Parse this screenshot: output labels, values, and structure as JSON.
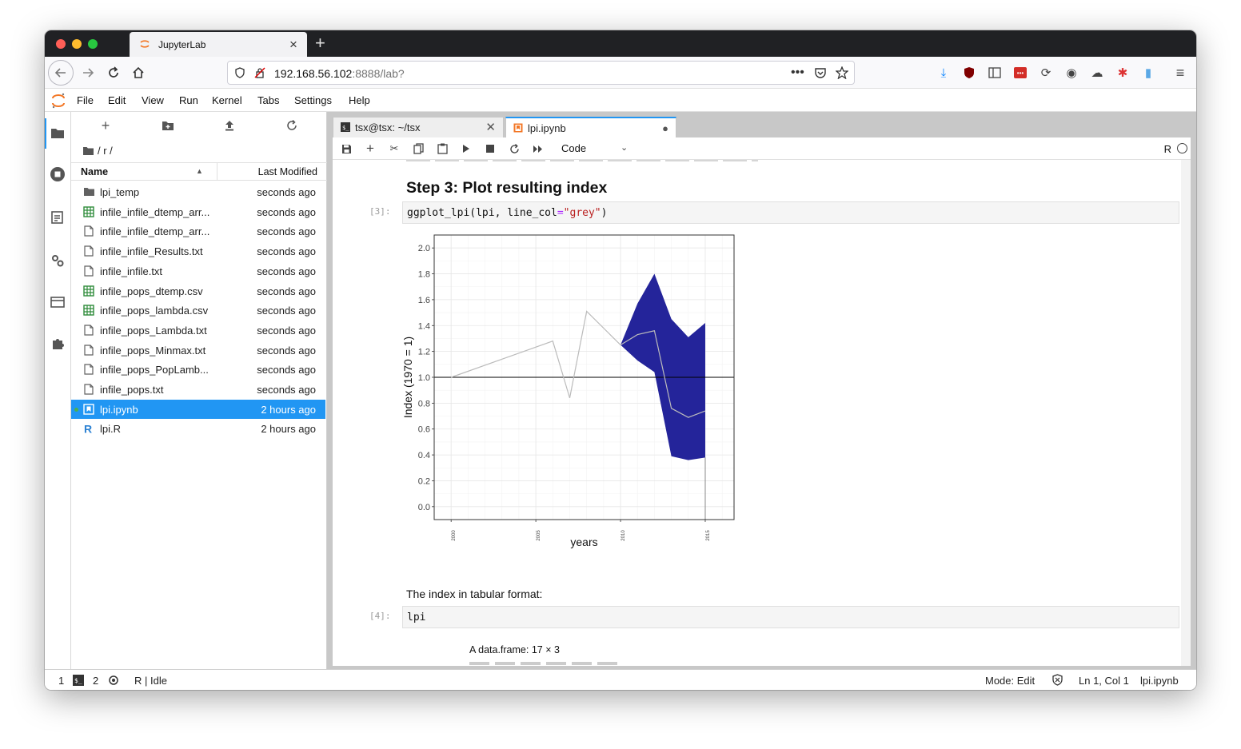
{
  "browser": {
    "tab_title": "JupyterLab",
    "url_host": "192.168.56.102",
    "url_rest": ":8888/lab?"
  },
  "menu": [
    "File",
    "Edit",
    "View",
    "Run",
    "Kernel",
    "Tabs",
    "Settings",
    "Help"
  ],
  "filebrowser": {
    "breadcrumb": "/ r /",
    "col_name": "Name",
    "col_modified": "Last Modified",
    "files": [
      {
        "name": "lpi_temp",
        "icon": "folder-icon",
        "modified": "seconds ago"
      },
      {
        "name": "infile_infile_dtemp_arr...",
        "icon": "spreadsheet-icon",
        "modified": "seconds ago"
      },
      {
        "name": "infile_infile_dtemp_arr...",
        "icon": "file-icon",
        "modified": "seconds ago"
      },
      {
        "name": "infile_infile_Results.txt",
        "icon": "file-icon",
        "modified": "seconds ago"
      },
      {
        "name": "infile_infile.txt",
        "icon": "file-icon",
        "modified": "seconds ago"
      },
      {
        "name": "infile_pops_dtemp.csv",
        "icon": "spreadsheet-icon",
        "modified": "seconds ago"
      },
      {
        "name": "infile_pops_lambda.csv",
        "icon": "spreadsheet-icon",
        "modified": "seconds ago"
      },
      {
        "name": "infile_pops_Lambda.txt",
        "icon": "file-icon",
        "modified": "seconds ago"
      },
      {
        "name": "infile_pops_Minmax.txt",
        "icon": "file-icon",
        "modified": "seconds ago"
      },
      {
        "name": "infile_pops_PopLamb...",
        "icon": "file-icon",
        "modified": "seconds ago"
      },
      {
        "name": "infile_pops.txt",
        "icon": "file-icon",
        "modified": "seconds ago"
      },
      {
        "name": "lpi.ipynb",
        "icon": "notebook-icon",
        "modified": "2 hours ago",
        "selected": true
      },
      {
        "name": "lpi.R",
        "icon": "r-file-icon",
        "modified": "2 hours ago"
      }
    ]
  },
  "doc_tabs": [
    {
      "label": "tsx@tsx: ~/tsx",
      "icon": "terminal-icon",
      "close": "✕"
    },
    {
      "label": "lpi.ipynb",
      "icon": "notebook-icon",
      "close": "●"
    }
  ],
  "notebook": {
    "cell_type": "Code",
    "kernel": "R",
    "heading": "Step 3: Plot resulting index",
    "cell3": {
      "prompt": "[3]:",
      "fn": "ggplot_lpi(lpi, line_col",
      "eq": "=",
      "str": "\"grey\"",
      "close": ")"
    },
    "text1": "The index in tabular format:",
    "cell4": {
      "prompt": "[4]:",
      "code": "lpi"
    },
    "output4": "A data.frame: 17 × 3"
  },
  "chart_data": {
    "type": "line",
    "xlabel": "years",
    "ylabel": "Index (1970 = 1)",
    "xlim": [
      1999,
      2016.7
    ],
    "ylim": [
      -0.1,
      2.1
    ],
    "x_ticks": [
      2000,
      2005,
      2010,
      2015
    ],
    "y_ticks": [
      0.0,
      0.2,
      0.4,
      0.6,
      0.8,
      1.0,
      1.2,
      1.4,
      1.6,
      1.8,
      2.0
    ],
    "y_tick_labels": [
      "0.0",
      "0.2",
      "0.4",
      "0.6",
      "0.8",
      "1.0",
      "1.2",
      "1.4",
      "1.6",
      "1.8",
      "2.0"
    ],
    "x_tick_labels": [
      "2000",
      "2005",
      "2010",
      "2015"
    ],
    "reference_line": 1.0,
    "line_color": "#bbbbbb",
    "ci_color": "#24249a",
    "index": {
      "x": [
        2000,
        2006,
        2007,
        2008,
        2010,
        2011,
        2012,
        2013,
        2014,
        2015
      ],
      "y": [
        1.0,
        1.28,
        0.84,
        1.51,
        1.25,
        1.33,
        1.36,
        0.76,
        0.69,
        0.74
      ]
    },
    "ci_upper": {
      "x": [
        2010,
        2011,
        2012,
        2013,
        2014,
        2015
      ],
      "y": [
        1.25,
        1.57,
        1.8,
        1.45,
        1.31,
        1.42
      ]
    },
    "ci_lower": {
      "x": [
        2010,
        2011,
        2012,
        2013,
        2014,
        2015
      ],
      "y": [
        1.25,
        1.13,
        1.04,
        0.39,
        0.36,
        0.38
      ]
    }
  },
  "statusbar": {
    "num1": "1",
    "num2": "2",
    "kernel_status": "R | Idle",
    "mode": "Mode: Edit",
    "position": "Ln 1, Col 1",
    "filename": "lpi.ipynb"
  }
}
